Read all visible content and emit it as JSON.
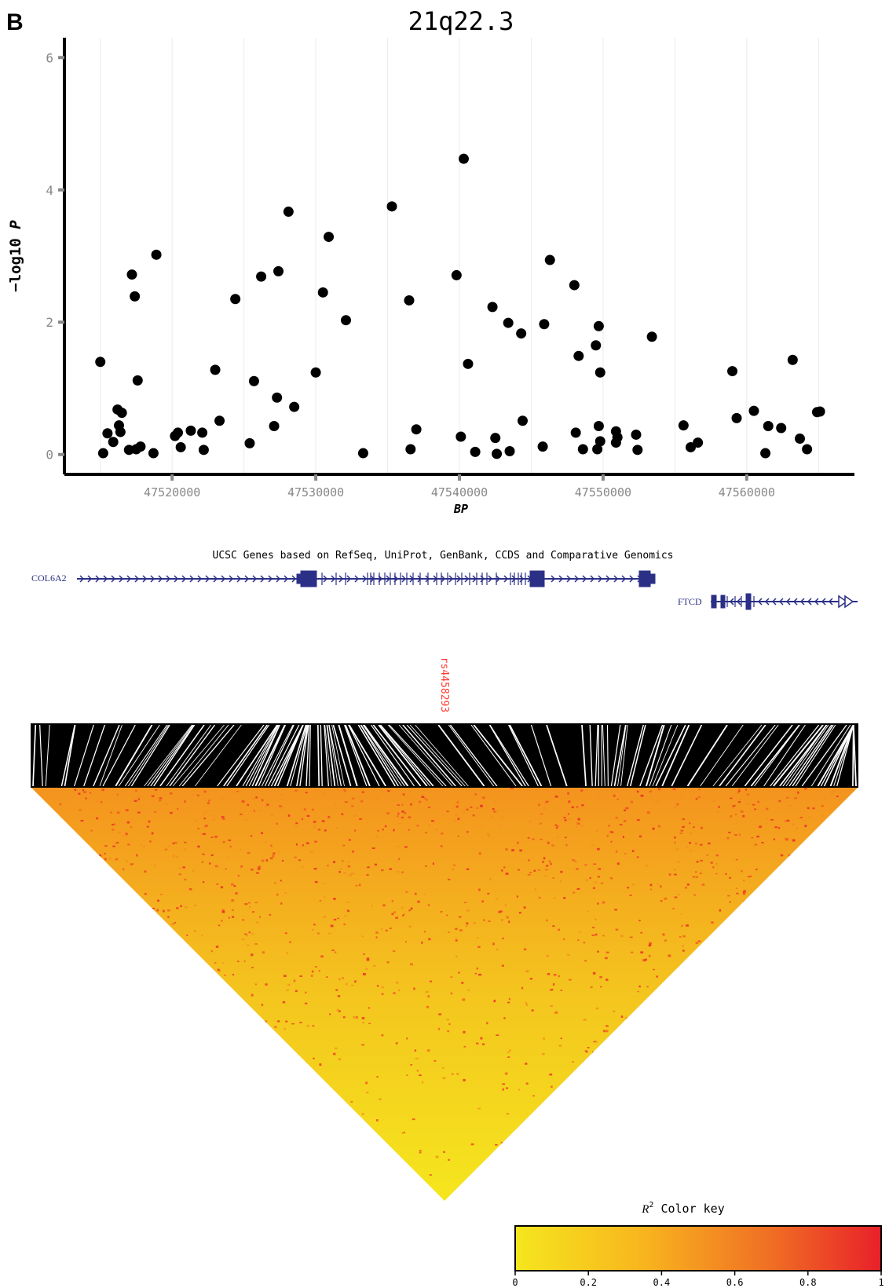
{
  "panel_label": "B",
  "gene_track": {
    "title": "UCSC Genes based on RefSeq, UniProt, GenBank, CCDS and Comparative Genomics",
    "genes": [
      {
        "name": "COL6A2",
        "start": 47518000,
        "end": 47552500,
        "strand": "+"
      },
      {
        "name": "FTCD",
        "start": 47556000,
        "end": 47575000,
        "strand": "-"
      }
    ],
    "color": "#2b2f86"
  },
  "ld": {
    "snp_label": "rs4458293",
    "snp_color": "#ff3b30",
    "color_key": {
      "title_sym": "R",
      "title_sup": "2",
      "title_rest": " Color key",
      "ticks": [
        "0",
        "0.2",
        "0.4",
        "0.6",
        "0.8",
        "1"
      ],
      "low_color": "#f5e61e",
      "high_color": "#e8202a"
    }
  },
  "chart_data": {
    "type": "scatter",
    "title": "21q22.3",
    "xlabel": "BP",
    "ylabel_prefix": "−log10 ",
    "ylabel_italic": "P",
    "xlim": [
      47512500,
      47567500
    ],
    "ylim": [
      -0.3,
      6.3
    ],
    "xticks": [
      {
        "value": 47520000,
        "label": "47520000"
      },
      {
        "value": 47530000,
        "label": "47530000"
      },
      {
        "value": 47540000,
        "label": "47540000"
      },
      {
        "value": 47550000,
        "label": "47550000"
      },
      {
        "value": 47560000,
        "label": "47560000"
      }
    ],
    "yticks": [
      {
        "value": 0,
        "label": "0"
      },
      {
        "value": 2,
        "label": "2"
      },
      {
        "value": 4,
        "label": "4"
      },
      {
        "value": 6,
        "label": "6"
      }
    ],
    "grid": "vertical",
    "point_color": "#000000",
    "points": [
      [
        47515000,
        1.4
      ],
      [
        47515200,
        0.02
      ],
      [
        47515500,
        0.32
      ],
      [
        47515900,
        0.19
      ],
      [
        47516200,
        0.68
      ],
      [
        47516300,
        0.44
      ],
      [
        47516400,
        0.34
      ],
      [
        47516500,
        0.63
      ],
      [
        47517000,
        0.07
      ],
      [
        47517200,
        2.72
      ],
      [
        47517400,
        2.39
      ],
      [
        47517500,
        0.08
      ],
      [
        47517600,
        1.12
      ],
      [
        47517800,
        0.12
      ],
      [
        47518700,
        0.02
      ],
      [
        47518900,
        3.02
      ],
      [
        47520200,
        0.28
      ],
      [
        47520400,
        0.33
      ],
      [
        47520600,
        0.11
      ],
      [
        47521300,
        0.36
      ],
      [
        47522100,
        0.33
      ],
      [
        47522200,
        0.07
      ],
      [
        47523000,
        1.28
      ],
      [
        47523300,
        0.51
      ],
      [
        47524400,
        2.35
      ],
      [
        47525400,
        0.17
      ],
      [
        47525700,
        1.11
      ],
      [
        47526200,
        2.69
      ],
      [
        47527100,
        0.43
      ],
      [
        47527300,
        0.86
      ],
      [
        47527400,
        2.77
      ],
      [
        47528100,
        3.67
      ],
      [
        47528500,
        0.72
      ],
      [
        47530000,
        1.24
      ],
      [
        47530500,
        2.45
      ],
      [
        47530900,
        3.29
      ],
      [
        47532100,
        2.03
      ],
      [
        47533300,
        0.02
      ],
      [
        47535300,
        3.75
      ],
      [
        47536500,
        2.33
      ],
      [
        47536600,
        0.08
      ],
      [
        47537000,
        0.38
      ],
      [
        47539800,
        2.71
      ],
      [
        47540100,
        0.27
      ],
      [
        47540300,
        4.47
      ],
      [
        47540600,
        1.37
      ],
      [
        47541100,
        0.04
      ],
      [
        47542300,
        2.23
      ],
      [
        47542500,
        0.25
      ],
      [
        47542600,
        0.01
      ],
      [
        47543400,
        1.99
      ],
      [
        47543500,
        0.05
      ],
      [
        47544300,
        1.83
      ],
      [
        47544400,
        0.51
      ],
      [
        47545800,
        0.12
      ],
      [
        47545900,
        1.97
      ],
      [
        47546300,
        2.94
      ],
      [
        47548000,
        2.56
      ],
      [
        47548100,
        0.33
      ],
      [
        47548300,
        1.49
      ],
      [
        47548600,
        0.08
      ],
      [
        47549500,
        1.65
      ],
      [
        47549600,
        0.08
      ],
      [
        47549700,
        0.43
      ],
      [
        47549700,
        1.94
      ],
      [
        47549800,
        1.24
      ],
      [
        47549800,
        0.2
      ],
      [
        47550900,
        0.35
      ],
      [
        47550900,
        0.18
      ],
      [
        47551000,
        0.26
      ],
      [
        47552300,
        0.3
      ],
      [
        47552400,
        0.07
      ],
      [
        47553400,
        1.78
      ],
      [
        47555600,
        0.44
      ],
      [
        47556100,
        0.11
      ],
      [
        47556600,
        0.18
      ],
      [
        47559000,
        1.26
      ],
      [
        47559300,
        0.55
      ],
      [
        47560500,
        0.66
      ],
      [
        47561300,
        0.02
      ],
      [
        47561500,
        0.43
      ],
      [
        47562400,
        0.4
      ],
      [
        47563200,
        1.43
      ],
      [
        47563700,
        0.24
      ],
      [
        47564200,
        0.08
      ],
      [
        47564900,
        0.64
      ],
      [
        47565100,
        0.65
      ]
    ]
  }
}
